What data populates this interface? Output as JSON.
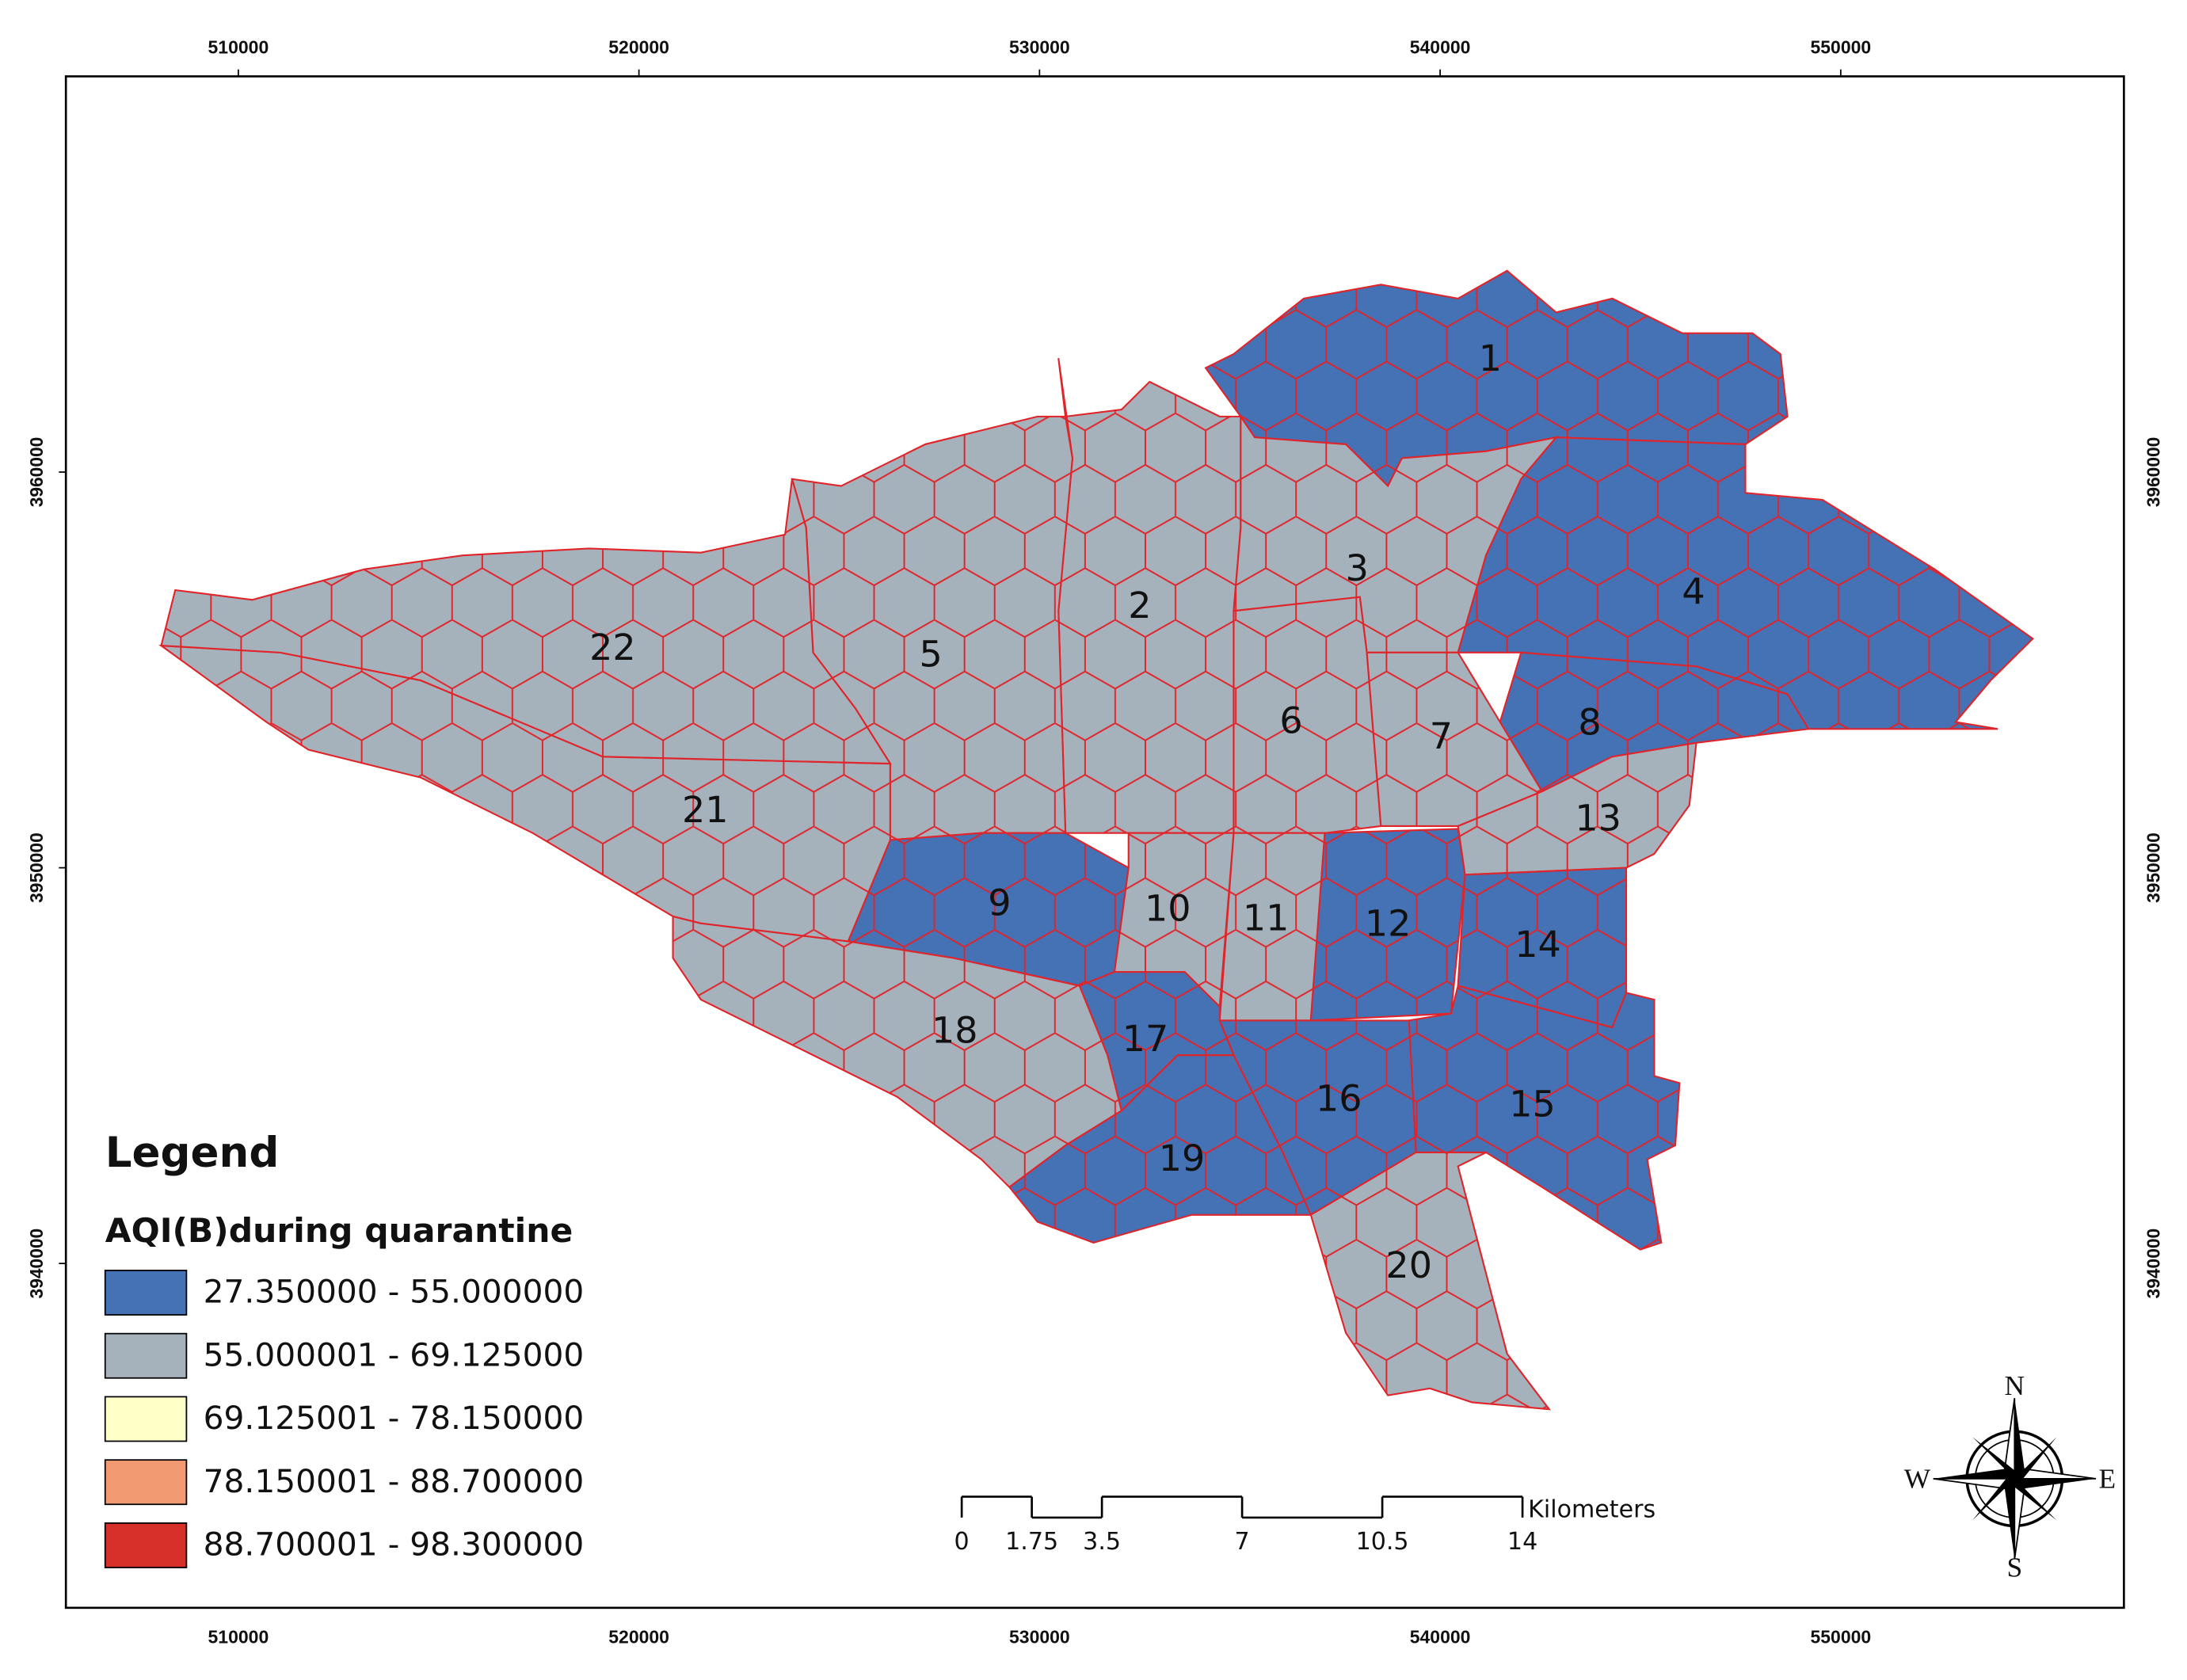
{
  "map": {
    "x_axis_labels": [
      510000,
      520000,
      530000,
      540000,
      550000
    ],
    "y_axis_labels": [
      3960000,
      3950000,
      3940000
    ],
    "districts": [
      {
        "label": "1",
        "color": "#4571b5"
      },
      {
        "label": "2",
        "color": "#a5b1bb"
      },
      {
        "label": "3",
        "color": "#a5b1bb"
      },
      {
        "label": "4",
        "color": "#4571b5"
      },
      {
        "label": "5",
        "color": "#a5b1bb"
      },
      {
        "label": "6",
        "color": "#a5b1bb"
      },
      {
        "label": "7",
        "color": "#a5b1bb"
      },
      {
        "label": "8",
        "color": "#4571b5"
      },
      {
        "label": "9",
        "color": "#4571b5"
      },
      {
        "label": "10",
        "color": "#a5b1bb"
      },
      {
        "label": "11",
        "color": "#a5b1bb"
      },
      {
        "label": "12",
        "color": "#4571b5"
      },
      {
        "label": "13",
        "color": "#a5b1bb"
      },
      {
        "label": "14",
        "color": "#4571b5"
      },
      {
        "label": "15",
        "color": "#4571b5"
      },
      {
        "label": "16",
        "color": "#4571b5"
      },
      {
        "label": "17",
        "color": "#4571b5"
      },
      {
        "label": "18",
        "color": "#a5b1bb"
      },
      {
        "label": "19",
        "color": "#4571b5"
      },
      {
        "label": "20",
        "color": "#a5b1bb"
      },
      {
        "label": "21",
        "color": "#a5b1bb"
      },
      {
        "label": "22",
        "color": "#a5b1bb"
      }
    ],
    "legend": {
      "title": "Legend",
      "subtitle": "AQI(B)during quarantine",
      "items": [
        {
          "label": "27.350000 - 55.000000",
          "color": "#4571b5"
        },
        {
          "label": "55.000001 - 69.125000",
          "color": "#a5b1bb"
        },
        {
          "label": "69.125001 - 78.150000",
          "color": "#ffffc8"
        },
        {
          "label": "78.150001 - 88.700000",
          "color": "#f29a72"
        },
        {
          "label": "88.700001 - 98.300000",
          "color": "#d7302a"
        }
      ]
    },
    "scale_bar": {
      "ticks": [
        0,
        1.75,
        3.5,
        7,
        10.5,
        14
      ],
      "unit": "Kilometers"
    },
    "compass": {
      "north": "N",
      "south": "S",
      "east": "E",
      "west": "W"
    }
  }
}
